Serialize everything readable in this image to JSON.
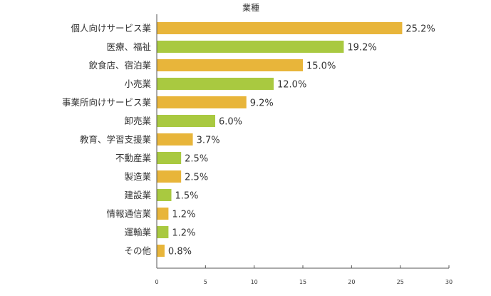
{
  "chart_data": {
    "type": "bar",
    "orientation": "horizontal",
    "title": "業種",
    "categories": [
      "個人向けサービス業",
      "医療、福祉",
      "飲食店、宿泊業",
      "小売業",
      "事業所向けサービス業",
      "卸売業",
      "教育、学習支援業",
      "不動産業",
      "製造業",
      "建設業",
      "情報通信業",
      "運輸業",
      "その他"
    ],
    "values": [
      25.2,
      19.2,
      15.0,
      12.0,
      9.2,
      6.0,
      3.7,
      2.5,
      2.5,
      1.5,
      1.2,
      1.2,
      0.8
    ],
    "value_labels": [
      "25.2%",
      "19.2%",
      "15.0%",
      "12.0%",
      "9.2%",
      "6.0%",
      "3.7%",
      "2.5%",
      "2.5%",
      "1.5%",
      "1.2%",
      "1.2%",
      "0.8%"
    ],
    "xlim": [
      0,
      30
    ],
    "xticks": [
      "0",
      "5",
      "10",
      "15",
      "20",
      "25",
      "30"
    ],
    "grid": false,
    "colors": [
      "#e8b53a",
      "#a9c940"
    ],
    "axis_color": "#555555"
  }
}
